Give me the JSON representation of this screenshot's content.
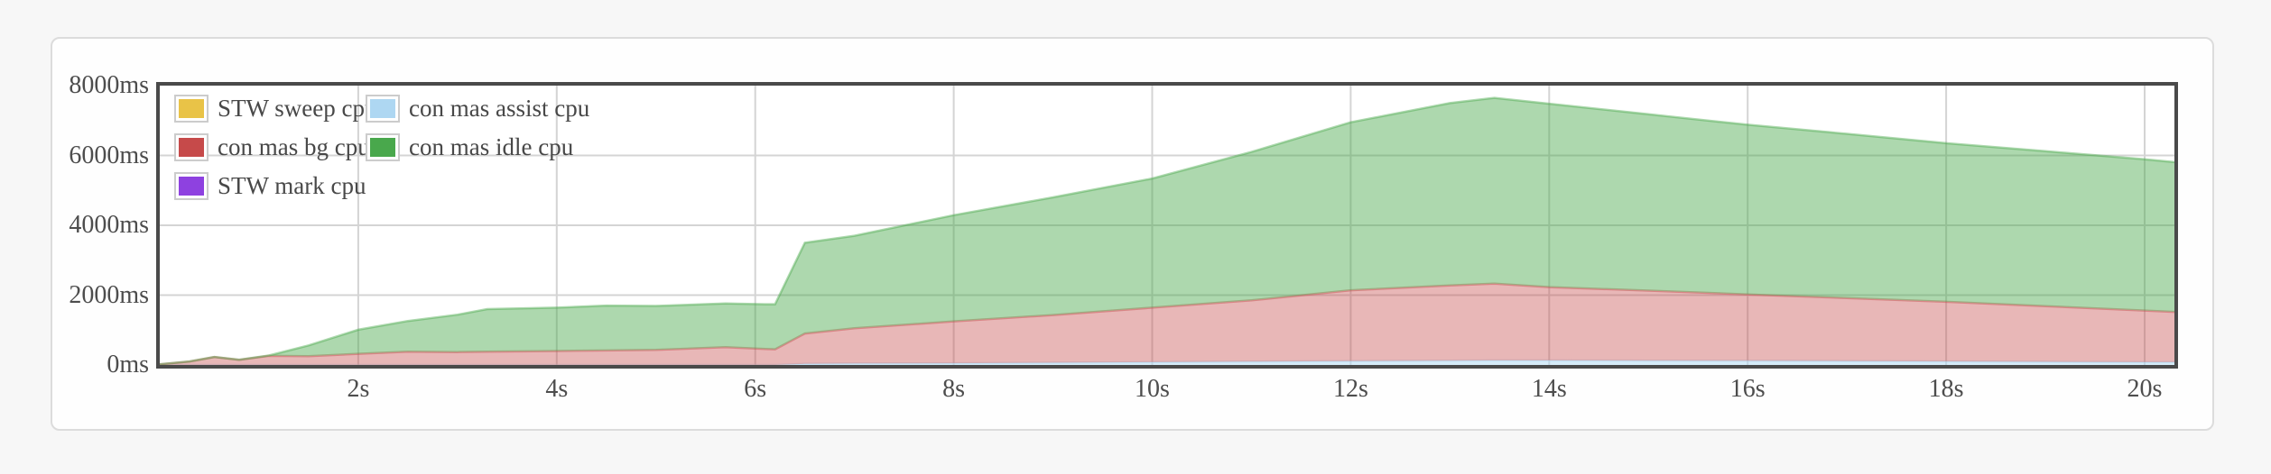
{
  "page": {
    "background": "#f7f7f7"
  },
  "panel": {
    "background": "#fefefe",
    "border_color": "#dcdcdc"
  },
  "chart_data": {
    "type": "area",
    "stacked": true,
    "title": "",
    "xlabel": "",
    "ylabel": "",
    "grid": true,
    "legend_position": "inside-top-left",
    "plot_border_color": "#4a4a4a",
    "grid_color": "#d4d4d4",
    "text_color": "#4d4d4d",
    "x_axis": {
      "min": 0,
      "max": 20.3,
      "unit": "s",
      "ticks": [
        {
          "value": 2,
          "label": "2s"
        },
        {
          "value": 4,
          "label": "4s"
        },
        {
          "value": 6,
          "label": "6s"
        },
        {
          "value": 8,
          "label": "8s"
        },
        {
          "value": 10,
          "label": "10s"
        },
        {
          "value": 12,
          "label": "12s"
        },
        {
          "value": 14,
          "label": "14s"
        },
        {
          "value": 16,
          "label": "16s"
        },
        {
          "value": 18,
          "label": "18s"
        },
        {
          "value": 20,
          "label": "20s"
        }
      ]
    },
    "y_axis": {
      "min": 0,
      "max": 8000,
      "unit": "ms",
      "ticks": [
        {
          "value": 0,
          "label": "0ms"
        },
        {
          "value": 2000,
          "label": "2000ms"
        },
        {
          "value": 4000,
          "label": "4000ms"
        },
        {
          "value": 6000,
          "label": "6000ms"
        },
        {
          "value": 8000,
          "label": "8000ms"
        }
      ]
    },
    "x": [
      0,
      0.3,
      0.55,
      0.8,
      1.1,
      1.5,
      2,
      2.5,
      3,
      3.3,
      4,
      4.5,
      5,
      5.7,
      6.1,
      6.2,
      6.5,
      7,
      8,
      9,
      10,
      11,
      12,
      13,
      13.45,
      14,
      15,
      16,
      17,
      18,
      19,
      20,
      20.3
    ],
    "series": [
      {
        "name": "STW sweep cpu",
        "color": "#e9c347",
        "fill_opacity": 0.45,
        "values": [
          0,
          0,
          0,
          0,
          0,
          0,
          0,
          0,
          0,
          0,
          0,
          0,
          0,
          0,
          0,
          0,
          0,
          0,
          0,
          0,
          0,
          0,
          0,
          0,
          0,
          0,
          0,
          0,
          0,
          0,
          0,
          0,
          0
        ]
      },
      {
        "name": "con mas bg cpu",
        "color": "#c64a4a",
        "fill_opacity": 0.4,
        "values": [
          20,
          100,
          230,
          150,
          260,
          250,
          320,
          380,
          370,
          380,
          400,
          415,
          430,
          510,
          460,
          450,
          870,
          1010,
          1200,
          1365,
          1560,
          1755,
          2030,
          2155,
          2200,
          2100,
          2005,
          1900,
          1805,
          1710,
          1595,
          1480,
          1440
        ]
      },
      {
        "name": "STW mark cpu",
        "color": "#8e41e0",
        "fill_opacity": 0.45,
        "values": [
          0,
          0,
          0,
          0,
          0,
          0,
          0,
          0,
          0,
          0,
          0,
          0,
          0,
          0,
          0,
          0,
          0,
          0,
          0,
          0,
          0,
          0,
          0,
          0,
          0,
          0,
          0,
          0,
          0,
          0,
          0,
          0,
          0
        ]
      },
      {
        "name": "con mas assist cpu",
        "color": "#aed7f2",
        "fill_opacity": 0.5,
        "values": [
          0,
          0,
          0,
          0,
          0,
          0,
          0,
          0,
          0,
          0,
          0,
          0,
          0,
          0,
          0,
          0,
          30,
          40,
          50,
          65,
          80,
          95,
          110,
          125,
          130,
          130,
          125,
          120,
          110,
          100,
          90,
          80,
          80
        ]
      },
      {
        "name": "con mas idle cpu",
        "color": "#49a84c",
        "fill_opacity": 0.45,
        "values": [
          0,
          0,
          0,
          0,
          10,
          310,
          690,
          880,
          1070,
          1220,
          1240,
          1285,
          1260,
          1250,
          1280,
          1290,
          2600,
          2650,
          3040,
          3370,
          3700,
          4250,
          4810,
          5220,
          5320,
          5250,
          5050,
          4860,
          4705,
          4540,
          4435,
          4330,
          4290
        ]
      }
    ],
    "stack_order": [
      0,
      2,
      3,
      1,
      4
    ],
    "legend_columns": [
      [
        0,
        1,
        2
      ],
      [
        3,
        4
      ]
    ]
  }
}
